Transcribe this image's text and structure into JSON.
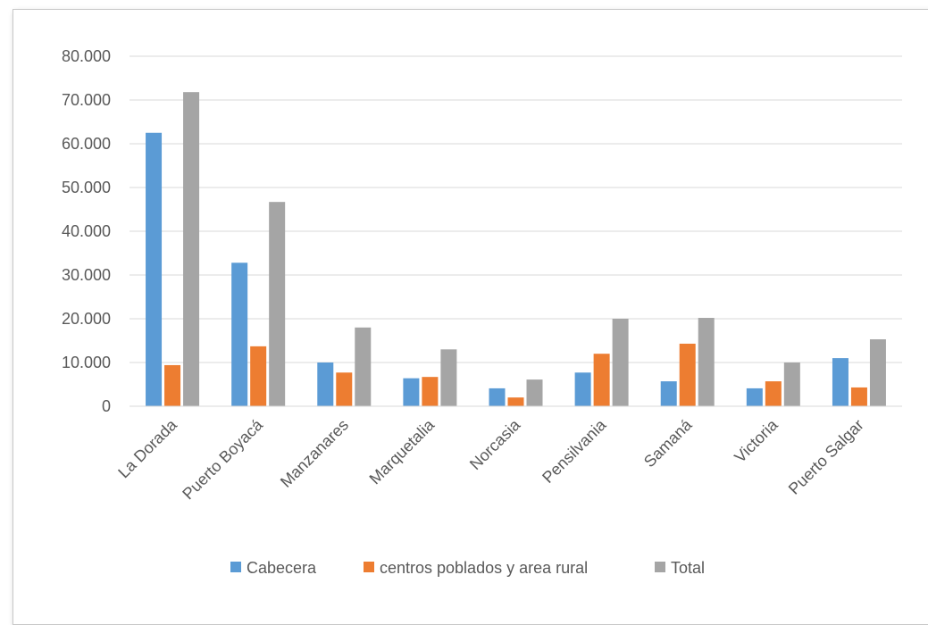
{
  "chart_data": {
    "type": "bar",
    "title": "",
    "xlabel": "",
    "ylabel": "",
    "ylim": [
      0,
      80000
    ],
    "yticks": [
      0,
      10000,
      20000,
      30000,
      40000,
      50000,
      60000,
      70000,
      80000
    ],
    "ytick_labels": [
      "0",
      "10.000",
      "20.000",
      "30.000",
      "40.000",
      "50.000",
      "60.000",
      "70.000",
      "80.000"
    ],
    "grid": true,
    "legend_position": "bottom",
    "categories": [
      "La Dorada",
      "Puerto Boyacá",
      "Manzanares",
      "Marquetalia",
      "Norcasia",
      "Pensilvania",
      "Samaná",
      "Victoria",
      "Puerto Salgar"
    ],
    "series": [
      {
        "name": "Cabecera",
        "color": "#5B9BD5",
        "values": [
          62500,
          32800,
          10000,
          6400,
          4100,
          7700,
          5700,
          4100,
          11000
        ]
      },
      {
        "name": "centros poblados y area rural",
        "color": "#ED7D31",
        "values": [
          9400,
          13700,
          7700,
          6700,
          2000,
          12000,
          14300,
          5700,
          4300
        ]
      },
      {
        "name": "Total",
        "color": "#A5A5A5",
        "values": [
          71800,
          46700,
          18000,
          13000,
          6100,
          20000,
          20200,
          10000,
          15300
        ]
      }
    ]
  }
}
